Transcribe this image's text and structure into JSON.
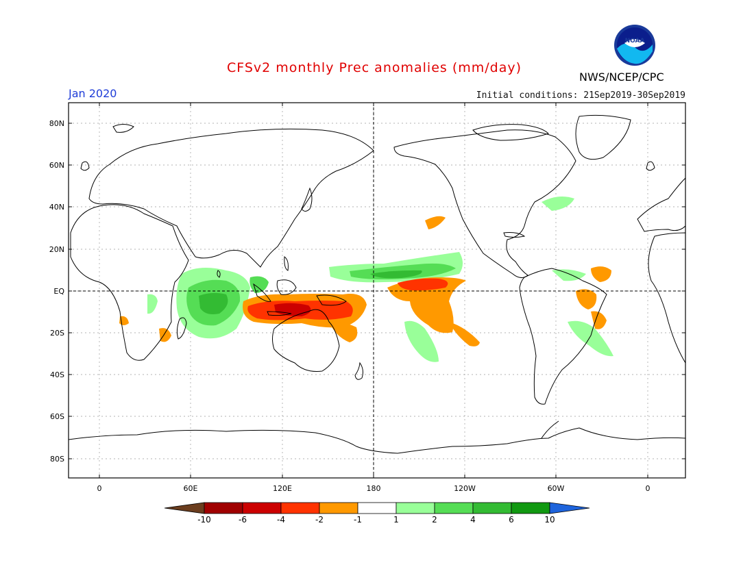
{
  "header": {
    "title": "CFSv2 monthly Prec anomalies (mm/day)",
    "month": "Jan 2020",
    "initial_conditions": "Initial conditions: 21Sep2019-30Sep2019",
    "agency": "NWS/NCEP/CPC",
    "logo_text": "NOAA"
  },
  "axes": {
    "lat_labels": [
      "80N",
      "60N",
      "40N",
      "20N",
      "EQ",
      "20S",
      "40S",
      "60S",
      "80S"
    ],
    "lon_labels": [
      "0",
      "60E",
      "120E",
      "180",
      "120W",
      "60W",
      "0"
    ]
  },
  "colorbar": {
    "labels": [
      "-10",
      "-6",
      "-4",
      "-2",
      "-1",
      "1",
      "2",
      "4",
      "6",
      "10"
    ],
    "colors": [
      "#6b3d1e",
      "#a00000",
      "#cc0000",
      "#ff3300",
      "#ff9900",
      "#ffffff",
      "#99ff99",
      "#55dd55",
      "#33bb33",
      "#119911",
      "#1e64dc"
    ]
  },
  "colors": {
    "title": "#e00000",
    "month": "#1e3cd8"
  }
}
